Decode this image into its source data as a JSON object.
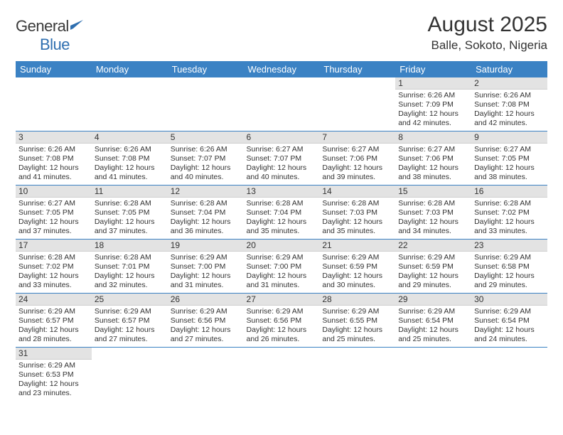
{
  "logo": {
    "text_general": "General",
    "text_blue": "Blue"
  },
  "title": "August 2025",
  "location": "Balle, Sokoto, Nigeria",
  "colors": {
    "header_bg": "#3b82c4",
    "header_text": "#ffffff",
    "daynum_bg": "#e3e3e3",
    "cell_border": "#3b82c4",
    "text": "#333333",
    "logo_blue": "#2f6fb0"
  },
  "weekdays": [
    "Sunday",
    "Monday",
    "Tuesday",
    "Wednesday",
    "Thursday",
    "Friday",
    "Saturday"
  ],
  "days": [
    {
      "n": 1,
      "sunrise": "6:26 AM",
      "sunset": "7:09 PM",
      "dl": "12 hours and 42 minutes."
    },
    {
      "n": 2,
      "sunrise": "6:26 AM",
      "sunset": "7:08 PM",
      "dl": "12 hours and 42 minutes."
    },
    {
      "n": 3,
      "sunrise": "6:26 AM",
      "sunset": "7:08 PM",
      "dl": "12 hours and 41 minutes."
    },
    {
      "n": 4,
      "sunrise": "6:26 AM",
      "sunset": "7:08 PM",
      "dl": "12 hours and 41 minutes."
    },
    {
      "n": 5,
      "sunrise": "6:26 AM",
      "sunset": "7:07 PM",
      "dl": "12 hours and 40 minutes."
    },
    {
      "n": 6,
      "sunrise": "6:27 AM",
      "sunset": "7:07 PM",
      "dl": "12 hours and 40 minutes."
    },
    {
      "n": 7,
      "sunrise": "6:27 AM",
      "sunset": "7:06 PM",
      "dl": "12 hours and 39 minutes."
    },
    {
      "n": 8,
      "sunrise": "6:27 AM",
      "sunset": "7:06 PM",
      "dl": "12 hours and 38 minutes."
    },
    {
      "n": 9,
      "sunrise": "6:27 AM",
      "sunset": "7:05 PM",
      "dl": "12 hours and 38 minutes."
    },
    {
      "n": 10,
      "sunrise": "6:27 AM",
      "sunset": "7:05 PM",
      "dl": "12 hours and 37 minutes."
    },
    {
      "n": 11,
      "sunrise": "6:28 AM",
      "sunset": "7:05 PM",
      "dl": "12 hours and 37 minutes."
    },
    {
      "n": 12,
      "sunrise": "6:28 AM",
      "sunset": "7:04 PM",
      "dl": "12 hours and 36 minutes."
    },
    {
      "n": 13,
      "sunrise": "6:28 AM",
      "sunset": "7:04 PM",
      "dl": "12 hours and 35 minutes."
    },
    {
      "n": 14,
      "sunrise": "6:28 AM",
      "sunset": "7:03 PM",
      "dl": "12 hours and 35 minutes."
    },
    {
      "n": 15,
      "sunrise": "6:28 AM",
      "sunset": "7:03 PM",
      "dl": "12 hours and 34 minutes."
    },
    {
      "n": 16,
      "sunrise": "6:28 AM",
      "sunset": "7:02 PM",
      "dl": "12 hours and 33 minutes."
    },
    {
      "n": 17,
      "sunrise": "6:28 AM",
      "sunset": "7:02 PM",
      "dl": "12 hours and 33 minutes."
    },
    {
      "n": 18,
      "sunrise": "6:28 AM",
      "sunset": "7:01 PM",
      "dl": "12 hours and 32 minutes."
    },
    {
      "n": 19,
      "sunrise": "6:29 AM",
      "sunset": "7:00 PM",
      "dl": "12 hours and 31 minutes."
    },
    {
      "n": 20,
      "sunrise": "6:29 AM",
      "sunset": "7:00 PM",
      "dl": "12 hours and 31 minutes."
    },
    {
      "n": 21,
      "sunrise": "6:29 AM",
      "sunset": "6:59 PM",
      "dl": "12 hours and 30 minutes."
    },
    {
      "n": 22,
      "sunrise": "6:29 AM",
      "sunset": "6:59 PM",
      "dl": "12 hours and 29 minutes."
    },
    {
      "n": 23,
      "sunrise": "6:29 AM",
      "sunset": "6:58 PM",
      "dl": "12 hours and 29 minutes."
    },
    {
      "n": 24,
      "sunrise": "6:29 AM",
      "sunset": "6:57 PM",
      "dl": "12 hours and 28 minutes."
    },
    {
      "n": 25,
      "sunrise": "6:29 AM",
      "sunset": "6:57 PM",
      "dl": "12 hours and 27 minutes."
    },
    {
      "n": 26,
      "sunrise": "6:29 AM",
      "sunset": "6:56 PM",
      "dl": "12 hours and 27 minutes."
    },
    {
      "n": 27,
      "sunrise": "6:29 AM",
      "sunset": "6:56 PM",
      "dl": "12 hours and 26 minutes."
    },
    {
      "n": 28,
      "sunrise": "6:29 AM",
      "sunset": "6:55 PM",
      "dl": "12 hours and 25 minutes."
    },
    {
      "n": 29,
      "sunrise": "6:29 AM",
      "sunset": "6:54 PM",
      "dl": "12 hours and 25 minutes."
    },
    {
      "n": 30,
      "sunrise": "6:29 AM",
      "sunset": "6:54 PM",
      "dl": "12 hours and 24 minutes."
    },
    {
      "n": 31,
      "sunrise": "6:29 AM",
      "sunset": "6:53 PM",
      "dl": "12 hours and 23 minutes."
    }
  ],
  "labels": {
    "sunrise": "Sunrise:",
    "sunset": "Sunset:",
    "daylight": "Daylight:"
  },
  "first_weekday_index": 5
}
